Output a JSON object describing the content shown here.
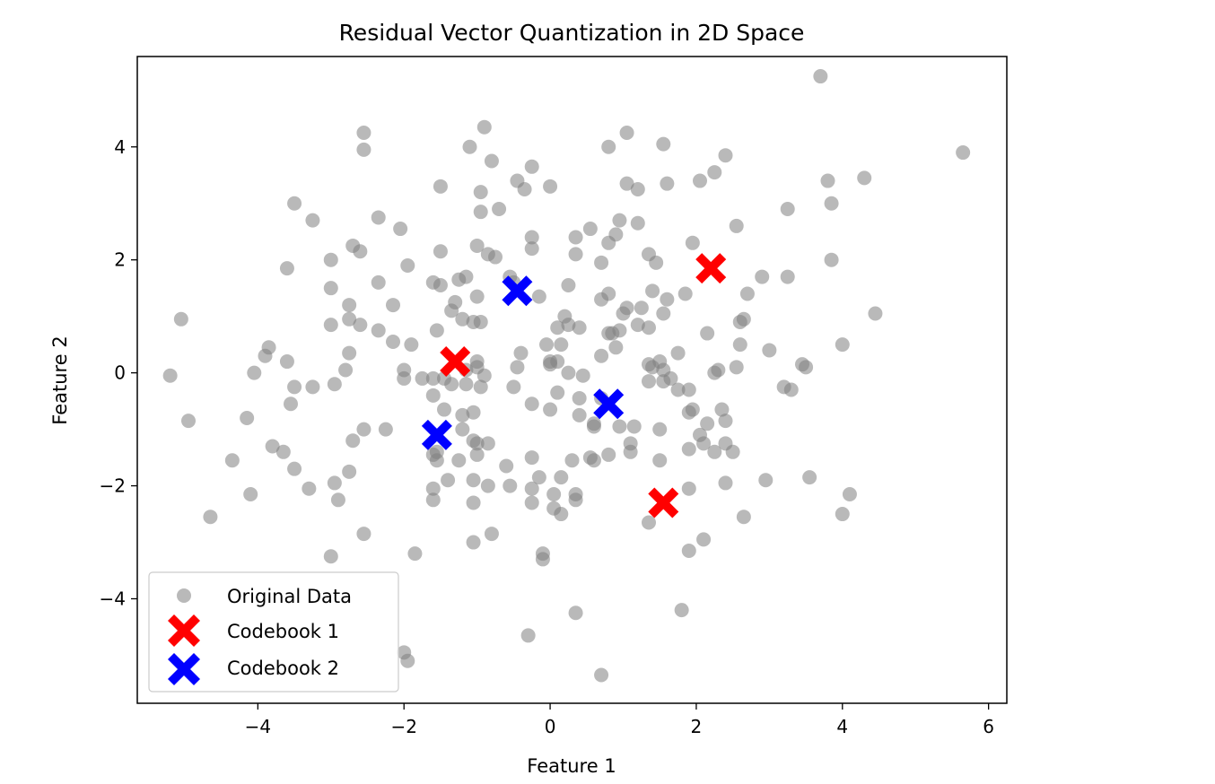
{
  "chart_data": {
    "type": "scatter",
    "title": "Residual Vector Quantization in 2D Space",
    "xlabel": "Feature 1",
    "ylabel": "Feature 2",
    "xlim": [
      -5.65,
      6.25
    ],
    "ylim": [
      -5.85,
      5.6
    ],
    "xticks": [
      -4,
      -2,
      0,
      2,
      4,
      6
    ],
    "yticks": [
      -4,
      -2,
      0,
      2,
      4
    ],
    "grid": false,
    "legend_position": "lower-left",
    "series": [
      {
        "name": "Original Data",
        "marker": "circle",
        "color": "#808080",
        "points": [
          [
            3.7,
            5.25
          ],
          [
            5.65,
            3.9
          ],
          [
            -2.55,
            4.25
          ],
          [
            -2.55,
            3.95
          ],
          [
            -0.9,
            4.35
          ],
          [
            -1.1,
            4.0
          ],
          [
            -0.8,
            3.75
          ],
          [
            -0.25,
            3.65
          ],
          [
            0.0,
            3.3
          ],
          [
            -0.45,
            3.4
          ],
          [
            -0.35,
            3.25
          ],
          [
            -1.5,
            3.3
          ],
          [
            -0.95,
            3.2
          ],
          [
            0.8,
            4.0
          ],
          [
            1.05,
            4.25
          ],
          [
            1.55,
            4.05
          ],
          [
            2.4,
            3.85
          ],
          [
            2.25,
            3.55
          ],
          [
            2.05,
            3.4
          ],
          [
            1.6,
            3.35
          ],
          [
            1.05,
            3.35
          ],
          [
            1.2,
            3.25
          ],
          [
            3.8,
            3.4
          ],
          [
            4.3,
            3.45
          ],
          [
            3.85,
            3.0
          ],
          [
            3.25,
            2.9
          ],
          [
            -3.5,
            3.0
          ],
          [
            -3.25,
            2.7
          ],
          [
            -2.35,
            2.75
          ],
          [
            -2.05,
            2.55
          ],
          [
            -0.95,
            2.85
          ],
          [
            -0.7,
            2.9
          ],
          [
            -0.25,
            2.4
          ],
          [
            0.35,
            2.4
          ],
          [
            0.55,
            2.55
          ],
          [
            0.9,
            2.45
          ],
          [
            0.95,
            2.7
          ],
          [
            1.2,
            2.65
          ],
          [
            0.8,
            2.3
          ],
          [
            0.35,
            2.1
          ],
          [
            -0.25,
            2.2
          ],
          [
            -0.85,
            2.1
          ],
          [
            -0.75,
            2.05
          ],
          [
            -1.0,
            2.25
          ],
          [
            -1.5,
            2.15
          ],
          [
            -1.95,
            1.9
          ],
          [
            -2.6,
            2.15
          ],
          [
            -2.7,
            2.25
          ],
          [
            -3.0,
            2.0
          ],
          [
            -3.6,
            1.85
          ],
          [
            -2.35,
            1.6
          ],
          [
            -3.0,
            1.5
          ],
          [
            -1.6,
            1.6
          ],
          [
            -1.5,
            1.55
          ],
          [
            -1.25,
            1.65
          ],
          [
            -1.15,
            1.7
          ],
          [
            -1.0,
            1.35
          ],
          [
            -0.55,
            1.7
          ],
          [
            -0.5,
            1.6
          ],
          [
            -0.15,
            1.35
          ],
          [
            0.25,
            1.55
          ],
          [
            0.7,
            1.95
          ],
          [
            0.8,
            1.4
          ],
          [
            1.35,
            2.1
          ],
          [
            1.45,
            1.95
          ],
          [
            1.95,
            2.3
          ],
          [
            2.55,
            2.6
          ],
          [
            2.9,
            1.7
          ],
          [
            3.25,
            1.7
          ],
          [
            3.85,
            2.0
          ],
          [
            2.7,
            1.4
          ],
          [
            1.85,
            1.4
          ],
          [
            1.6,
            1.3
          ],
          [
            1.4,
            1.45
          ],
          [
            1.25,
            1.15
          ],
          [
            1.05,
            1.15
          ],
          [
            1.0,
            1.05
          ],
          [
            0.7,
            1.3
          ],
          [
            0.2,
            1.0
          ],
          [
            0.25,
            0.85
          ],
          [
            0.1,
            0.8
          ],
          [
            0.4,
            0.8
          ],
          [
            -0.05,
            0.5
          ],
          [
            0.15,
            0.5
          ],
          [
            -0.4,
            0.35
          ],
          [
            -0.45,
            0.1
          ],
          [
            0.0,
            0.2
          ],
          [
            0.1,
            0.2
          ],
          [
            0.0,
            0.15
          ],
          [
            0.25,
            0.0
          ],
          [
            0.45,
            -0.05
          ],
          [
            0.7,
            0.3
          ],
          [
            0.9,
            0.45
          ],
          [
            0.95,
            0.75
          ],
          [
            0.85,
            0.7
          ],
          [
            0.8,
            0.7
          ],
          [
            1.2,
            0.85
          ],
          [
            1.35,
            0.8
          ],
          [
            1.55,
            1.05
          ],
          [
            1.75,
            0.35
          ],
          [
            2.15,
            0.7
          ],
          [
            2.6,
            0.9
          ],
          [
            2.65,
            0.95
          ],
          [
            2.6,
            0.5
          ],
          [
            3.0,
            0.4
          ],
          [
            3.45,
            0.15
          ],
          [
            4.45,
            1.05
          ],
          [
            4.0,
            0.5
          ],
          [
            1.35,
            0.15
          ],
          [
            1.5,
            0.2
          ],
          [
            1.55,
            0.05
          ],
          [
            1.4,
            0.1
          ],
          [
            1.65,
            -0.1
          ],
          [
            1.75,
            -0.3
          ],
          [
            1.9,
            -0.3
          ],
          [
            1.55,
            -0.15
          ],
          [
            1.35,
            -0.15
          ],
          [
            2.3,
            0.05
          ],
          [
            2.25,
            0.0
          ],
          [
            2.55,
            0.1
          ],
          [
            3.2,
            -0.25
          ],
          [
            3.3,
            -0.3
          ],
          [
            1.95,
            -0.65
          ],
          [
            1.9,
            -0.7
          ],
          [
            2.35,
            -0.65
          ],
          [
            2.4,
            -0.85
          ],
          [
            2.15,
            -0.9
          ],
          [
            2.05,
            -1.1
          ],
          [
            2.1,
            -1.25
          ],
          [
            2.4,
            -1.25
          ],
          [
            2.5,
            -1.4
          ],
          [
            2.25,
            -1.4
          ],
          [
            1.9,
            -1.35
          ],
          [
            1.5,
            -1.0
          ],
          [
            1.1,
            -1.25
          ],
          [
            1.1,
            -1.4
          ],
          [
            1.5,
            -1.55
          ],
          [
            1.15,
            -0.95
          ],
          [
            0.95,
            -0.95
          ],
          [
            0.8,
            -1.45
          ],
          [
            0.55,
            -1.5
          ],
          [
            0.6,
            -1.55
          ],
          [
            0.3,
            -1.55
          ],
          [
            0.6,
            -0.9
          ],
          [
            0.6,
            -0.95
          ],
          [
            0.7,
            -0.45
          ],
          [
            0.4,
            -0.45
          ],
          [
            0.4,
            -0.75
          ],
          [
            0.1,
            -0.35
          ],
          [
            0.0,
            -0.65
          ],
          [
            -0.25,
            -0.55
          ],
          [
            -0.5,
            -0.25
          ],
          [
            -0.95,
            -0.25
          ],
          [
            -0.9,
            -0.05
          ],
          [
            -1.0,
            0.1
          ],
          [
            -1.0,
            0.2
          ],
          [
            -1.15,
            0.05
          ],
          [
            -1.15,
            -0.2
          ],
          [
            -1.35,
            -0.2
          ],
          [
            -1.45,
            -0.1
          ],
          [
            -1.6,
            -0.1
          ],
          [
            -1.6,
            -0.4
          ],
          [
            -1.45,
            -0.65
          ],
          [
            -1.75,
            -0.1
          ],
          [
            -2.0,
            -0.1
          ],
          [
            -2.0,
            0.05
          ],
          [
            -2.15,
            0.55
          ],
          [
            -1.9,
            0.5
          ],
          [
            -1.55,
            0.75
          ],
          [
            -1.35,
            1.1
          ],
          [
            -1.3,
            1.25
          ],
          [
            -1.05,
            0.9
          ],
          [
            -0.95,
            0.9
          ],
          [
            -1.2,
            0.95
          ],
          [
            -2.15,
            1.2
          ],
          [
            -2.6,
            0.85
          ],
          [
            -2.35,
            0.75
          ],
          [
            -2.75,
            0.95
          ],
          [
            -2.75,
            1.2
          ],
          [
            -3.0,
            0.85
          ],
          [
            -3.6,
            0.2
          ],
          [
            -3.9,
            0.3
          ],
          [
            -3.85,
            0.45
          ],
          [
            -4.05,
            0.0
          ],
          [
            -2.75,
            0.35
          ],
          [
            -2.8,
            0.05
          ],
          [
            -3.25,
            -0.25
          ],
          [
            -3.5,
            -0.25
          ],
          [
            -3.55,
            -0.55
          ],
          [
            -2.95,
            -0.2
          ],
          [
            -2.55,
            -1.0
          ],
          [
            -2.25,
            -1.0
          ],
          [
            -2.7,
            -1.2
          ],
          [
            -1.05,
            -0.7
          ],
          [
            -1.2,
            -0.75
          ],
          [
            -1.2,
            -1.0
          ],
          [
            -1.05,
            -1.2
          ],
          [
            -1.0,
            -1.25
          ],
          [
            -0.85,
            -1.25
          ],
          [
            -1.0,
            -1.45
          ],
          [
            -1.25,
            -1.55
          ],
          [
            -1.55,
            -1.55
          ],
          [
            -1.55,
            -1.4
          ],
          [
            -1.6,
            -1.45
          ],
          [
            -1.4,
            -1.9
          ],
          [
            -1.6,
            -2.05
          ],
          [
            -1.6,
            -2.25
          ],
          [
            -1.05,
            -1.9
          ],
          [
            -0.85,
            -2.0
          ],
          [
            -0.6,
            -1.65
          ],
          [
            -0.55,
            -2.0
          ],
          [
            -0.25,
            -1.5
          ],
          [
            -0.15,
            -1.85
          ],
          [
            -0.25,
            -2.05
          ],
          [
            -0.25,
            -2.3
          ],
          [
            0.05,
            -2.15
          ],
          [
            0.05,
            -2.4
          ],
          [
            0.15,
            -1.85
          ],
          [
            0.35,
            -2.15
          ],
          [
            0.35,
            -2.25
          ],
          [
            0.15,
            -2.5
          ],
          [
            -0.1,
            -3.2
          ],
          [
            -0.1,
            -3.3
          ],
          [
            -1.05,
            -2.3
          ],
          [
            -1.05,
            -3.0
          ],
          [
            -0.8,
            -2.85
          ],
          [
            -1.85,
            -3.2
          ],
          [
            -3.0,
            -3.25
          ],
          [
            -2.55,
            -2.85
          ],
          [
            -2.9,
            -2.25
          ],
          [
            -2.95,
            -1.95
          ],
          [
            -2.75,
            -1.75
          ],
          [
            -3.3,
            -2.05
          ],
          [
            -3.5,
            -1.7
          ],
          [
            -3.65,
            -1.4
          ],
          [
            -3.8,
            -1.3
          ],
          [
            -4.35,
            -1.55
          ],
          [
            -4.15,
            -0.8
          ],
          [
            -4.95,
            -0.85
          ],
          [
            -5.05,
            0.95
          ],
          [
            -5.2,
            -0.05
          ],
          [
            -4.1,
            -2.15
          ],
          [
            -4.65,
            -2.55
          ],
          [
            -2.0,
            -4.95
          ],
          [
            -1.95,
            -5.1
          ],
          [
            0.35,
            -4.25
          ],
          [
            -0.3,
            -4.65
          ],
          [
            0.7,
            -5.35
          ],
          [
            1.8,
            -4.2
          ],
          [
            1.9,
            -3.15
          ],
          [
            2.1,
            -2.95
          ],
          [
            2.65,
            -2.55
          ],
          [
            1.35,
            -2.65
          ],
          [
            1.9,
            -2.05
          ],
          [
            2.4,
            -1.95
          ],
          [
            2.95,
            -1.9
          ],
          [
            3.55,
            -1.85
          ],
          [
            4.1,
            -2.15
          ],
          [
            4.0,
            -2.5
          ],
          [
            3.5,
            0.1
          ]
        ]
      },
      {
        "name": "Codebook 1",
        "marker": "X",
        "color": "#ff0000",
        "points": [
          [
            2.2,
            1.85
          ],
          [
            -1.3,
            0.2
          ],
          [
            1.55,
            -2.3
          ]
        ]
      },
      {
        "name": "Codebook 2",
        "marker": "X",
        "color": "#0000ff",
        "points": [
          [
            -0.45,
            1.45
          ],
          [
            0.8,
            -0.55
          ],
          [
            -1.55,
            -1.1
          ]
        ]
      }
    ]
  }
}
